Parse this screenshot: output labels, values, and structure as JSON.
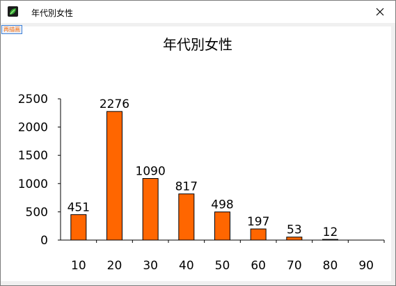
{
  "window": {
    "title": "年代別女性",
    "close_glyph": "✕"
  },
  "toolbar": {
    "reshow_label": "再描画"
  },
  "colors": {
    "bar_fill": "#ff6600",
    "bar_stroke": "#000000",
    "app_icon_green": "#2fa82f"
  },
  "icons": {
    "app": "leaf-app-icon",
    "close": "close-icon"
  },
  "chart_data": {
    "type": "bar",
    "title": "年代別女性",
    "xlabel": "",
    "ylabel": "",
    "categories": [
      "10",
      "20",
      "30",
      "40",
      "50",
      "60",
      "70",
      "80",
      "90"
    ],
    "values": [
      451,
      2276,
      1090,
      817,
      498,
      197,
      53,
      12,
      null
    ],
    "data_labels": [
      "451",
      "2276",
      "1090",
      "817",
      "498",
      "197",
      "53",
      "12",
      ""
    ],
    "ylim": [
      0,
      2500
    ],
    "yticks": [
      "0",
      "500",
      "1000",
      "1500",
      "2000",
      "2500"
    ],
    "ytick_values": [
      0,
      500,
      1000,
      1500,
      2000,
      2500
    ],
    "grid": false,
    "legend": "none"
  }
}
